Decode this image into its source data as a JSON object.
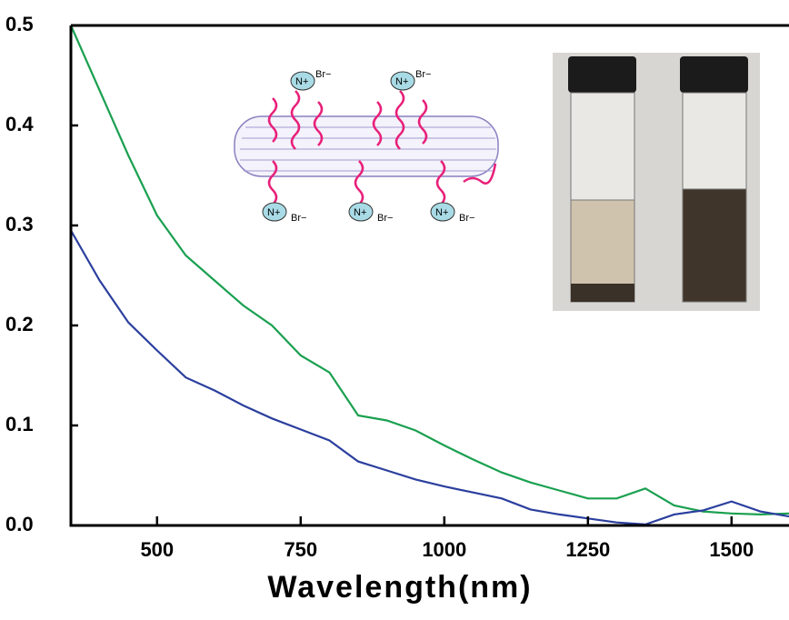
{
  "chart_data": {
    "type": "line",
    "x_label": "Wavelength(nm)",
    "x": [
      350,
      400,
      450,
      500,
      550,
      600,
      650,
      700,
      750,
      800,
      850,
      900,
      950,
      1000,
      1050,
      1100,
      1150,
      1200,
      1250,
      1300,
      1350,
      1400,
      1450,
      1500,
      1550,
      1600
    ],
    "series": [
      {
        "color": "#1aa050",
        "values": [
          0.5,
          0.435,
          0.37,
          0.31,
          0.27,
          0.245,
          0.22,
          0.2,
          0.17,
          0.153,
          0.11,
          0.105,
          0.095,
          0.08,
          0.066,
          0.053,
          0.043,
          0.035,
          0.027,
          0.027,
          0.037,
          0.02,
          0.014,
          0.012,
          0.011,
          0.012
        ]
      },
      {
        "color": "#2b3f9e",
        "values": [
          0.295,
          0.245,
          0.203,
          0.175,
          0.148,
          0.135,
          0.12,
          0.107,
          0.096,
          0.085,
          0.064,
          0.055,
          0.046,
          0.039,
          0.033,
          0.027,
          0.016,
          0.011,
          0.007,
          0.003,
          0.001,
          0.011,
          0.015,
          0.024,
          0.014,
          0.009
        ]
      }
    ],
    "xlim": [
      350,
      1600
    ],
    "xticks": [
      500,
      750,
      1000,
      1250,
      1500
    ],
    "ylim": [
      0,
      0.5
    ],
    "yticks": [
      {
        "value": 0,
        "label": "0.0"
      },
      0.1,
      0.2,
      0.3,
      0.4,
      0.5
    ],
    "inset_labels": {
      "cation": "N+",
      "anion": "Br−"
    }
  }
}
